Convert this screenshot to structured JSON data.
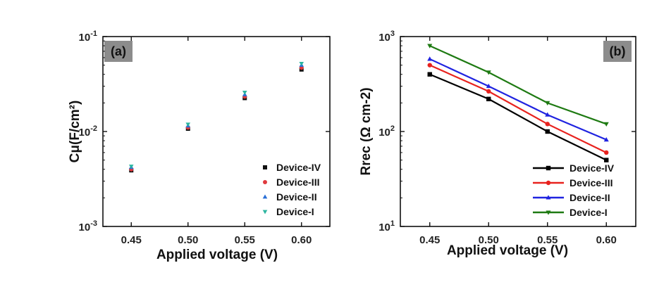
{
  "chart_data": [
    {
      "type": "scatter",
      "panel_label": "(a)",
      "xlabel": "Applied voltage (V)",
      "ylabel": "Cμ(F/cm²)",
      "y_scale": "log",
      "xlim": [
        0.425,
        0.625
      ],
      "ylim": [
        0.001,
        0.1
      ],
      "x_ticks": [
        "0.45",
        "0.50",
        "0.55",
        "0.60"
      ],
      "y_ticks": [
        {
          "base": "10",
          "exp": "-1"
        },
        {
          "base": "10",
          "exp": "-2"
        },
        {
          "base": "10",
          "exp": "-3"
        }
      ],
      "x": [
        0.45,
        0.5,
        0.55,
        0.6
      ],
      "series": [
        {
          "name": "Device-IV",
          "marker": "square",
          "color": "#111111",
          "values": [
            0.0039,
            0.0107,
            0.0225,
            0.045
          ]
        },
        {
          "name": "Device-III",
          "marker": "circle",
          "color": "#e0393d",
          "values": [
            0.004,
            0.011,
            0.0233,
            0.047
          ]
        },
        {
          "name": "Device-II",
          "marker": "triangle-up",
          "color": "#2a6fd6",
          "values": [
            0.0042,
            0.0115,
            0.0245,
            0.05
          ]
        },
        {
          "name": "Device-I",
          "marker": "triangle-down",
          "color": "#2db5a0",
          "values": [
            0.0043,
            0.0119,
            0.0258,
            0.052
          ]
        }
      ],
      "legend_position": "bottom-right",
      "grid": false
    },
    {
      "type": "line",
      "panel_label": "(b)",
      "xlabel": "Applied voltage (V)",
      "ylabel": "Rrec (Ω cm-2)",
      "y_scale": "log",
      "xlim": [
        0.425,
        0.625
      ],
      "ylim": [
        10,
        1000
      ],
      "x_ticks": [
        "0.45",
        "0.50",
        "0.55",
        "0.60"
      ],
      "y_ticks": [
        {
          "base": "10",
          "exp": "3"
        },
        {
          "base": "10",
          "exp": "2"
        },
        {
          "base": "10",
          "exp": "1"
        }
      ],
      "x": [
        0.45,
        0.5,
        0.55,
        0.6
      ],
      "series": [
        {
          "name": "Device-IV",
          "marker": "square",
          "color": "#000000",
          "values": [
            400,
            220,
            100,
            50
          ]
        },
        {
          "name": "Device-III",
          "marker": "circle",
          "color": "#e8221e",
          "values": [
            500,
            265,
            120,
            60
          ]
        },
        {
          "name": "Device-II",
          "marker": "triangle-up",
          "color": "#1f23e0",
          "values": [
            580,
            300,
            150,
            82
          ]
        },
        {
          "name": "Device-I",
          "marker": "triangle-down",
          "color": "#1e7a12",
          "values": [
            800,
            420,
            200,
            120
          ]
        }
      ],
      "legend_position": "bottom-right",
      "grid": false
    }
  ]
}
